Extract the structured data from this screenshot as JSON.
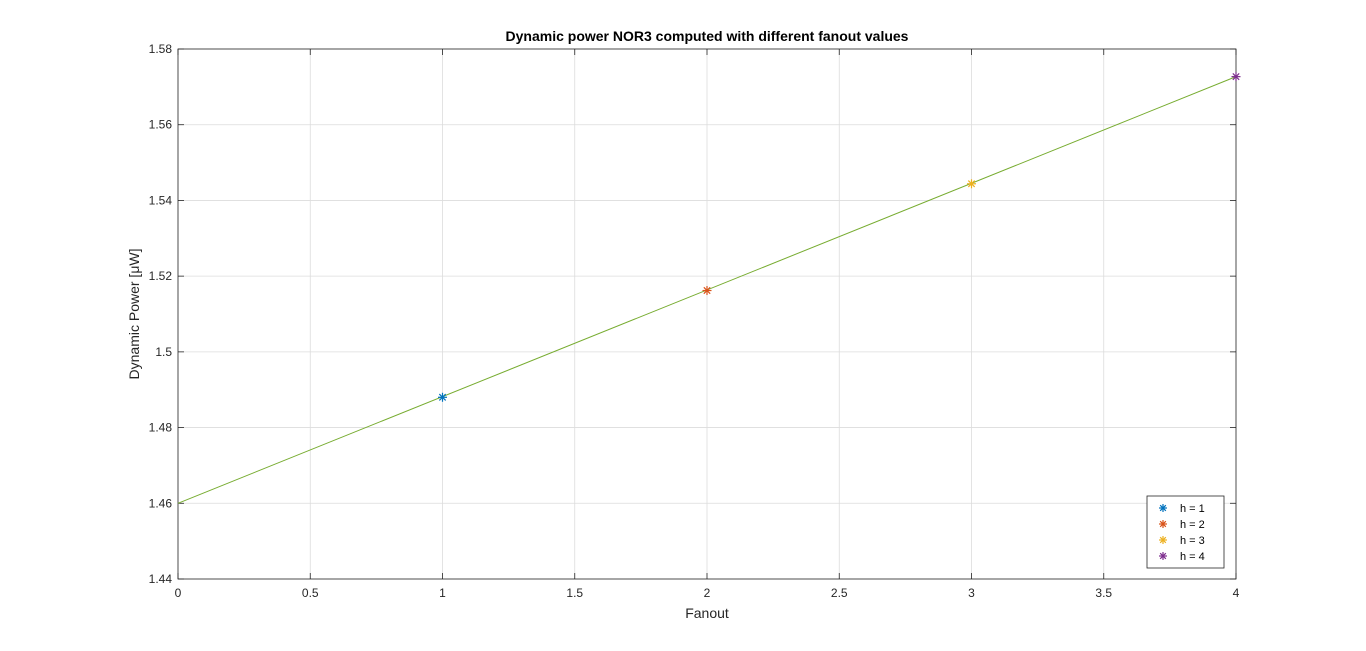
{
  "chart_data": {
    "type": "line",
    "title": "Dynamic power NOR3 computed with different fanout values",
    "xlabel": "Fanout",
    "ylabel": "Dynamic Power [μW]",
    "xlim": [
      0,
      4
    ],
    "ylim": [
      1.44,
      1.58
    ],
    "x_ticks": [
      0,
      0.5,
      1,
      1.5,
      2,
      2.5,
      3,
      3.5,
      4
    ],
    "x_tick_labels": [
      "0",
      "0.5",
      "1",
      "1.5",
      "2",
      "2.5",
      "3",
      "3.5",
      "4"
    ],
    "y_ticks": [
      1.44,
      1.46,
      1.48,
      1.5,
      1.52,
      1.54,
      1.56,
      1.58
    ],
    "y_tick_labels": [
      "1.44",
      "1.46",
      "1.48",
      "1.5",
      "1.52",
      "1.54",
      "1.56",
      "1.58"
    ],
    "grid": true,
    "legend_position": "bottom-right",
    "line": {
      "x": [
        0,
        4
      ],
      "y": [
        1.46,
        1.5727
      ],
      "color": "#77ac30"
    },
    "series": [
      {
        "name": "h = 1",
        "x": [
          1
        ],
        "y": [
          1.488
        ],
        "color": "#0072bd",
        "marker": "asterisk"
      },
      {
        "name": "h = 2",
        "x": [
          2
        ],
        "y": [
          1.5162
        ],
        "color": "#d95319",
        "marker": "asterisk"
      },
      {
        "name": "h = 3",
        "x": [
          3
        ],
        "y": [
          1.5444
        ],
        "color": "#edb120",
        "marker": "asterisk"
      },
      {
        "name": "h = 4",
        "x": [
          4
        ],
        "y": [
          1.5727
        ],
        "color": "#7e2f8e",
        "marker": "asterisk"
      }
    ]
  }
}
